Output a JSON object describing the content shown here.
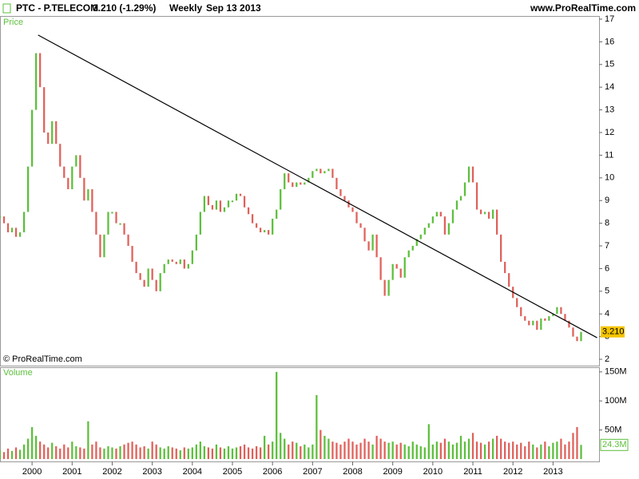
{
  "chart_data": {
    "type": "candlestick",
    "header": {
      "symbol": "PTC - P.TELECOM",
      "quote": "3.210 (-1.29%)",
      "period": "Weekly",
      "date": "Sep 13 2013",
      "site": "www.ProRealTime.com"
    },
    "price_label": "Price",
    "volume_label": "Volume",
    "copyright": "© ProRealTime.com",
    "last_price_label": "3.210",
    "last_volume_label": "24.3M",
    "up_color": "#5cbf3c",
    "down_color": "#e0605a",
    "x": [
      1999.2,
      1999.3,
      1999.4,
      1999.5,
      1999.6,
      1999.7,
      1999.8,
      1999.9,
      2000.0,
      2000.1,
      2000.2,
      2000.3,
      2000.4,
      2000.5,
      2000.6,
      2000.7,
      2000.8,
      2000.9,
      2001.0,
      2001.1,
      2001.2,
      2001.3,
      2001.4,
      2001.5,
      2001.6,
      2001.7,
      2001.8,
      2001.9,
      2002.0,
      2002.1,
      2002.2,
      2002.3,
      2002.4,
      2002.5,
      2002.6,
      2002.7,
      2002.8,
      2002.9,
      2003.0,
      2003.1,
      2003.2,
      2003.3,
      2003.4,
      2003.5,
      2003.6,
      2003.7,
      2003.8,
      2003.9,
      2004.0,
      2004.1,
      2004.2,
      2004.3,
      2004.4,
      2004.5,
      2004.6,
      2004.7,
      2004.8,
      2004.9,
      2005.0,
      2005.1,
      2005.2,
      2005.3,
      2005.4,
      2005.5,
      2005.6,
      2005.7,
      2005.8,
      2005.9,
      2006.0,
      2006.1,
      2006.2,
      2006.3,
      2006.4,
      2006.5,
      2006.6,
      2006.7,
      2006.8,
      2006.9,
      2007.0,
      2007.1,
      2007.2,
      2007.3,
      2007.4,
      2007.5,
      2007.6,
      2007.7,
      2007.8,
      2007.9,
      2008.0,
      2008.1,
      2008.2,
      2008.3,
      2008.4,
      2008.5,
      2008.6,
      2008.7,
      2008.8,
      2008.9,
      2009.0,
      2009.1,
      2009.2,
      2009.3,
      2009.4,
      2009.5,
      2009.6,
      2009.7,
      2009.8,
      2009.9,
      2010.0,
      2010.1,
      2010.2,
      2010.3,
      2010.4,
      2010.5,
      2010.6,
      2010.7,
      2010.8,
      2010.9,
      2011.0,
      2011.1,
      2011.2,
      2011.3,
      2011.4,
      2011.5,
      2011.6,
      2011.7,
      2011.8,
      2011.9,
      2012.0,
      2012.1,
      2012.2,
      2012.3,
      2012.4,
      2012.5,
      2012.6,
      2012.7,
      2012.8,
      2012.9,
      2013.0,
      2013.1,
      2013.2,
      2013.3,
      2013.4,
      2013.5,
      2013.6,
      2013.7
    ],
    "series": [
      {
        "name": "Price",
        "values": [
          8.3,
          8.0,
          7.6,
          7.8,
          7.4,
          7.6,
          8.5,
          10.5,
          13,
          15.5,
          14,
          12,
          11.5,
          12.5,
          11.5,
          10.5,
          10,
          9.5,
          10.5,
          11,
          10,
          9,
          9.5,
          8.5,
          7.5,
          6.5,
          7.5,
          8.5,
          8.5,
          8,
          8,
          7.5,
          7,
          6.3,
          5.8,
          5.5,
          5.2,
          6,
          5.5,
          5,
          5.8,
          6.2,
          6.4,
          6.3,
          6.2,
          6.4,
          6.0,
          6.2,
          6.8,
          7.5,
          8.5,
          9.2,
          8.8,
          8.6,
          9.0,
          8.5,
          8.7,
          9.0,
          9.0,
          9.3,
          9.2,
          8.7,
          8.4,
          8.0,
          7.8,
          7.6,
          7.7,
          7.5,
          8.2,
          8.6,
          9.5,
          10.2,
          9.8,
          9.6,
          9.8,
          9.7,
          9.8,
          10.0,
          10.3,
          10.4,
          10.2,
          10.3,
          10.4,
          10.0,
          9.5,
          9.2,
          9.0,
          8.7,
          8.5,
          8.0,
          7.8,
          7.2,
          6.8,
          7.5,
          6.5,
          5.5,
          4.8,
          5.5,
          6.2,
          6.0,
          5.6,
          6.5,
          6.8,
          7.0,
          7.3,
          7.5,
          7.8,
          8.0,
          8.3,
          8.5,
          8.3,
          7.5,
          8.0,
          8.6,
          9.0,
          9.2,
          9.8,
          10.5,
          9.8,
          8.6,
          8.4,
          8.5,
          8.2,
          8.6,
          7.5,
          6.3,
          5.8,
          5.2,
          4.7,
          4.3,
          3.9,
          3.7,
          3.5,
          3.7,
          3.3,
          3.8,
          3.7,
          3.9,
          4.0,
          4.3,
          4.0,
          3.7,
          3.4,
          3.0,
          2.8,
          3.21
        ]
      },
      {
        "name": "Volume",
        "axis": "y2",
        "values": [
          15,
          12,
          18,
          14,
          20,
          16,
          25,
          35,
          55,
          40,
          30,
          25,
          20,
          28,
          22,
          18,
          25,
          20,
          30,
          22,
          20,
          18,
          65,
          25,
          30,
          20,
          18,
          22,
          20,
          18,
          22,
          25,
          28,
          30,
          25,
          20,
          22,
          18,
          30,
          25,
          20,
          18,
          22,
          20,
          18,
          15,
          20,
          18,
          20,
          25,
          30,
          22,
          20,
          18,
          25,
          20,
          18,
          22,
          18,
          20,
          22,
          25,
          20,
          18,
          22,
          20,
          40,
          25,
          30,
          150,
          45,
          35,
          25,
          30,
          28,
          22,
          25,
          20,
          25,
          110,
          50,
          40,
          35,
          30,
          28,
          25,
          30,
          35,
          30,
          25,
          28,
          35,
          30,
          25,
          40,
          35,
          30,
          28,
          30,
          25,
          28,
          25,
          22,
          30,
          25,
          22,
          20,
          60,
          25,
          30,
          28,
          35,
          30,
          25,
          28,
          40,
          30,
          35,
          45,
          30,
          28,
          25,
          30,
          35,
          40,
          35,
          30,
          28,
          30,
          25,
          28,
          22,
          30,
          25,
          20,
          25,
          30,
          22,
          28,
          30,
          35,
          25,
          30,
          45,
          55,
          24.3
        ]
      }
    ],
    "trendline": {
      "x": [
        2000.15,
        2014.1
      ],
      "values": [
        16.3,
        2.95
      ]
    },
    "xlim": [
      1999.2,
      2013.75
    ],
    "xticks": [
      2000,
      2001,
      2002,
      2003,
      2004,
      2005,
      2006,
      2007,
      2008,
      2009,
      2010,
      2011,
      2012,
      2013
    ],
    "ylim": [
      1.72,
      17.14
    ],
    "yticks": [
      2,
      3,
      4,
      5,
      6,
      7,
      8,
      9,
      10,
      11,
      12,
      13,
      14,
      15,
      16,
      17
    ],
    "y2lim": [
      0,
      158
    ],
    "y2ticks": [
      {
        "value": 50,
        "label": "50M"
      },
      {
        "value": 100,
        "label": "100M"
      },
      {
        "value": 150,
        "label": "150M"
      }
    ]
  }
}
